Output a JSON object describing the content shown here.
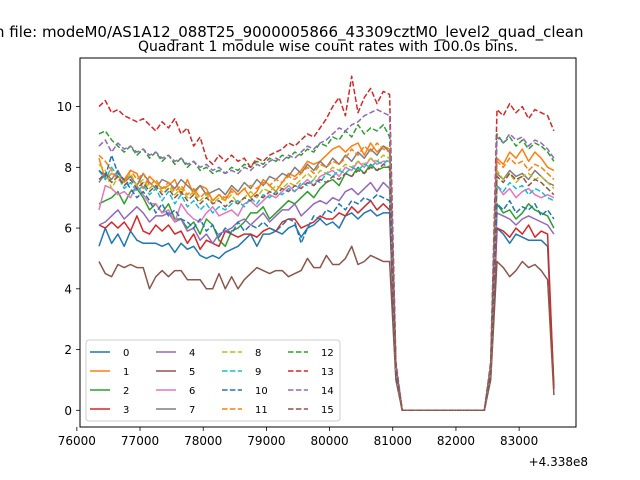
{
  "suptitle": "n file: modeM0/AS1A12_088T25_9000005866_43309cztM0_level2_quad_clean",
  "chart_data": {
    "type": "line",
    "title": "Quadrant 1 module wise count rates with 100.0s bins.",
    "xlabel": "",
    "ylabel": "",
    "x_offset_label": "+4.338e8",
    "xlim": [
      76050,
      83900
    ],
    "ylim": [
      -0.55,
      11.6
    ],
    "xticks": [
      76000,
      77000,
      78000,
      79000,
      80000,
      81000,
      82000,
      83000
    ],
    "yticks": [
      0,
      2,
      4,
      6,
      8,
      10
    ],
    "grid": false,
    "legend": {
      "placement": "lower-left",
      "columns": 4
    },
    "x": [
      76350,
      76450,
      76550,
      76650,
      76750,
      76850,
      76950,
      77050,
      77150,
      77250,
      77350,
      77450,
      77550,
      77650,
      77750,
      77850,
      77950,
      78050,
      78150,
      78250,
      78350,
      78450,
      78550,
      78650,
      78750,
      78850,
      78950,
      79050,
      79150,
      79250,
      79350,
      79450,
      79550,
      79650,
      79750,
      79850,
      79950,
      80050,
      80150,
      80250,
      80350,
      80450,
      80550,
      80650,
      80750,
      80850,
      80950,
      81050,
      81150,
      82450,
      82550,
      82650,
      82750,
      82850,
      82950,
      83050,
      83150,
      83250,
      83350,
      83450,
      83550
    ],
    "series": [
      {
        "name": "0",
        "color": "#1f77b4",
        "dash": "solid",
        "values": [
          5.4,
          6.0,
          5.5,
          5.8,
          5.4,
          5.9,
          5.6,
          5.5,
          5.5,
          5.5,
          5.4,
          5.5,
          5.2,
          5.5,
          5.3,
          5.4,
          5.1,
          5.0,
          5.1,
          5.0,
          5.2,
          5.3,
          5.4,
          5.6,
          5.8,
          5.4,
          5.8,
          5.8,
          5.9,
          5.8,
          6.0,
          6.1,
          5.7,
          6.0,
          6.1,
          6.3,
          6.1,
          6.2,
          6.0,
          6.4,
          6.5,
          6.3,
          6.5,
          6.6,
          6.4,
          6.5,
          6.5,
          1.2,
          0.0,
          0.0,
          1.3,
          6.0,
          5.8,
          5.5,
          5.8,
          5.7,
          5.6,
          5.6,
          5.6,
          5.4,
          0.8
        ]
      },
      {
        "name": "1",
        "color": "#ff7f0e",
        "dash": "solid",
        "values": [
          8.3,
          7.6,
          7.8,
          7.7,
          7.6,
          7.9,
          7.8,
          7.3,
          7.7,
          7.5,
          7.3,
          7.4,
          7.6,
          7.1,
          7.6,
          7.1,
          7.4,
          7.3,
          6.9,
          7.1,
          6.9,
          7.3,
          7.1,
          7.3,
          7.0,
          7.2,
          7.6,
          7.4,
          7.2,
          7.5,
          7.8,
          7.7,
          7.9,
          8.2,
          8.1,
          8.2,
          8.4,
          8.6,
          8.7,
          8.5,
          8.7,
          8.8,
          8.4,
          8.8,
          8.5,
          8.7,
          8.6,
          1.4,
          0.0,
          0.0,
          1.4,
          8.3,
          8.1,
          8.5,
          8.3,
          8.6,
          8.2,
          8.5,
          8.3,
          8.0,
          7.9
        ]
      },
      {
        "name": "2",
        "color": "#2ca02c",
        "dash": "solid",
        "values": [
          6.8,
          6.9,
          7.0,
          7.2,
          6.8,
          7.2,
          7.3,
          7.0,
          6.6,
          6.8,
          6.5,
          6.8,
          6.3,
          6.3,
          6.0,
          6.2,
          5.8,
          6.3,
          6.1,
          5.6,
          5.4,
          5.9,
          6.0,
          6.2,
          6.5,
          6.5,
          6.7,
          6.3,
          6.5,
          6.7,
          6.9,
          6.8,
          7.0,
          7.2,
          7.0,
          7.3,
          7.5,
          7.6,
          7.4,
          7.8,
          7.7,
          8.0,
          7.8,
          8.1,
          7.9,
          8.0,
          8.0,
          1.3,
          0.0,
          0.0,
          1.4,
          6.8,
          6.5,
          6.6,
          6.3,
          6.5,
          6.8,
          6.6,
          6.5,
          6.4,
          6.0
        ]
      },
      {
        "name": "3",
        "color": "#d62728",
        "dash": "solid",
        "values": [
          6.1,
          6.0,
          6.2,
          6.0,
          6.2,
          5.9,
          6.4,
          5.9,
          5.8,
          6.1,
          5.9,
          6.1,
          5.8,
          5.9,
          5.5,
          5.8,
          5.3,
          5.6,
          5.5,
          5.4,
          5.9,
          5.8,
          5.7,
          5.8,
          5.8,
          5.7,
          5.9,
          6.0,
          5.9,
          6.2,
          6.3,
          6.3,
          6.0,
          6.1,
          6.2,
          6.4,
          6.3,
          6.3,
          6.5,
          6.4,
          6.7,
          6.5,
          6.7,
          6.9,
          6.6,
          6.8,
          6.6,
          1.1,
          0.0,
          0.0,
          1.2,
          6.0,
          5.9,
          5.7,
          6.0,
          5.8,
          6.1,
          5.7,
          5.9,
          5.8,
          0.7
        ]
      },
      {
        "name": "4",
        "color": "#9467bd",
        "dash": "solid",
        "values": [
          6.1,
          6.2,
          6.4,
          6.6,
          6.3,
          6.5,
          6.7,
          6.5,
          6.2,
          6.4,
          6.4,
          6.5,
          6.2,
          6.3,
          5.9,
          6.0,
          5.6,
          5.8,
          5.5,
          5.8,
          5.9,
          6.0,
          6.2,
          6.3,
          6.1,
          6.3,
          6.5,
          6.2,
          6.4,
          6.6,
          6.6,
          6.8,
          6.4,
          6.6,
          6.8,
          6.9,
          6.8,
          7.0,
          6.9,
          7.2,
          7.3,
          7.1,
          7.3,
          7.5,
          7.2,
          7.5,
          7.3,
          1.2,
          0.0,
          0.0,
          1.3,
          6.5,
          6.4,
          6.3,
          6.1,
          6.3,
          6.4,
          6.3,
          6.2,
          6.1,
          5.8
        ]
      },
      {
        "name": "5",
        "color": "#8c564b",
        "dash": "solid",
        "values": [
          4.9,
          4.5,
          4.4,
          4.8,
          4.7,
          4.8,
          4.7,
          4.7,
          4.0,
          4.4,
          4.6,
          4.4,
          4.6,
          4.6,
          4.3,
          4.3,
          4.3,
          4.0,
          4.0,
          4.5,
          4.0,
          4.4,
          4.0,
          4.3,
          4.5,
          4.7,
          4.6,
          4.5,
          4.6,
          4.6,
          4.4,
          4.5,
          4.6,
          5.0,
          4.7,
          4.7,
          5.1,
          4.8,
          4.8,
          5.0,
          5.4,
          4.8,
          4.9,
          5.1,
          5.0,
          4.9,
          4.9,
          1.0,
          0.0,
          0.0,
          1.0,
          4.9,
          4.7,
          4.4,
          4.6,
          4.9,
          4.7,
          4.8,
          4.6,
          4.3,
          0.5
        ]
      },
      {
        "name": "6",
        "color": "#e377c2",
        "dash": "solid",
        "values": [
          6.6,
          7.4,
          7.3,
          7.1,
          7.2,
          7.0,
          7.4,
          7.1,
          6.8,
          6.8,
          6.5,
          6.6,
          6.2,
          6.8,
          6.5,
          6.3,
          6.2,
          6.5,
          6.7,
          6.4,
          6.5,
          6.6,
          6.4,
          6.8,
          6.9,
          6.7,
          6.9,
          7.1,
          7.0,
          7.2,
          7.4,
          7.2,
          7.4,
          7.6,
          7.4,
          7.7,
          7.8,
          7.9,
          7.7,
          8.0,
          7.9,
          8.2,
          8.0,
          8.3,
          8.1,
          8.2,
          8.2,
          1.3,
          0.0,
          0.0,
          1.4,
          7.4,
          7.1,
          7.3,
          7.0,
          7.2,
          7.3,
          7.1,
          7.0,
          7.1,
          7.0
        ]
      },
      {
        "name": "7",
        "color": "#7f7f7f",
        "dash": "solid",
        "values": [
          7.5,
          7.8,
          7.6,
          7.9,
          7.5,
          7.7,
          7.4,
          7.8,
          7.5,
          7.3,
          7.6,
          7.5,
          7.3,
          7.6,
          7.4,
          7.2,
          7.4,
          7.1,
          7.2,
          7.3,
          7.1,
          7.4,
          7.2,
          7.5,
          7.3,
          7.6,
          7.4,
          7.7,
          7.6,
          7.8,
          7.7,
          8.0,
          7.8,
          8.1,
          7.9,
          8.2,
          8.0,
          8.3,
          8.1,
          8.4,
          8.2,
          8.5,
          8.3,
          8.6,
          8.4,
          8.7,
          8.5,
          1.4,
          0.0,
          0.0,
          1.4,
          7.8,
          7.6,
          7.9,
          7.7,
          7.8,
          7.6,
          7.9,
          7.7,
          7.5,
          7.4
        ]
      },
      {
        "name": "8",
        "color": "#bcbd22",
        "dash": "dashed",
        "values": [
          8.1,
          7.9,
          7.3,
          7.7,
          7.5,
          7.8,
          7.4,
          7.6,
          7.3,
          7.5,
          7.2,
          7.4,
          7.1,
          7.3,
          7.0,
          7.2,
          6.9,
          7.1,
          6.8,
          7.0,
          6.9,
          7.1,
          6.8,
          7.0,
          7.2,
          7.0,
          7.3,
          7.2,
          7.4,
          7.3,
          7.5,
          7.4,
          7.6,
          7.8,
          7.6,
          7.9,
          7.8,
          8.0,
          7.9,
          8.1,
          8.0,
          8.2,
          8.1,
          8.3,
          8.2,
          8.4,
          8.3,
          1.4,
          0.0,
          0.0,
          1.3,
          7.9,
          7.6,
          7.8,
          7.5,
          7.7,
          7.8,
          7.6,
          7.7,
          7.5,
          7.3
        ]
      },
      {
        "name": "9",
        "color": "#17becf",
        "dash": "dashed",
        "values": [
          7.9,
          7.6,
          8.0,
          7.7,
          7.3,
          7.5,
          7.2,
          7.4,
          7.1,
          7.3,
          6.9,
          7.2,
          6.8,
          7.1,
          6.7,
          6.9,
          6.6,
          6.8,
          6.5,
          6.7,
          6.6,
          6.8,
          6.9,
          6.7,
          7.0,
          6.8,
          7.1,
          7.0,
          7.2,
          7.1,
          7.3,
          7.2,
          7.5,
          7.4,
          7.6,
          7.5,
          7.8,
          7.7,
          7.9,
          7.8,
          8.0,
          7.9,
          8.1,
          8.0,
          8.2,
          8.1,
          8.3,
          1.3,
          0.0,
          0.0,
          1.3,
          7.4,
          7.2,
          7.5,
          7.3,
          7.4,
          7.1,
          7.3,
          7.2,
          7.0,
          6.9
        ]
      },
      {
        "name": "10",
        "color": "#1f77b4",
        "dash": "dashed",
        "values": [
          7.9,
          7.7,
          8.4,
          7.8,
          7.6,
          7.3,
          7.0,
          7.2,
          6.9,
          6.5,
          6.8,
          6.4,
          6.6,
          6.3,
          6.2,
          6.0,
          6.3,
          5.9,
          6.1,
          5.7,
          6.0,
          5.8,
          6.2,
          5.9,
          6.1,
          6.0,
          6.2,
          6.0,
          5.9,
          6.1,
          6.3,
          6.2,
          5.5,
          6.0,
          6.4,
          6.3,
          6.6,
          6.5,
          6.8,
          6.6,
          6.9,
          6.8,
          7.0,
          6.9,
          7.1,
          7.0,
          6.9,
          1.2,
          0.0,
          0.0,
          1.2,
          6.8,
          6.6,
          6.9,
          6.5,
          6.7,
          6.6,
          6.8,
          6.4,
          6.6,
          6.3
        ]
      },
      {
        "name": "11",
        "color": "#ff7f0e",
        "dash": "dashed",
        "values": [
          8.4,
          8.2,
          7.9,
          7.6,
          7.5,
          7.9,
          7.6,
          7.8,
          7.4,
          7.6,
          7.3,
          7.5,
          7.2,
          7.4,
          7.1,
          7.3,
          7.0,
          7.2,
          6.9,
          7.1,
          7.0,
          7.2,
          7.1,
          7.3,
          7.4,
          7.3,
          7.5,
          7.4,
          7.6,
          7.5,
          7.7,
          7.6,
          7.8,
          8.0,
          7.8,
          8.1,
          8.0,
          8.2,
          8.1,
          8.3,
          8.6,
          8.4,
          8.7,
          8.5,
          8.8,
          8.6,
          8.5,
          1.4,
          0.0,
          0.0,
          1.4,
          8.2,
          8.0,
          8.3,
          8.1,
          8.2,
          7.9,
          8.1,
          8.0,
          7.8,
          7.6
        ]
      },
      {
        "name": "12",
        "color": "#2ca02c",
        "dash": "dashed",
        "values": [
          9.1,
          9.2,
          8.9,
          8.7,
          8.5,
          8.7,
          8.4,
          8.6,
          8.3,
          8.5,
          8.2,
          8.4,
          8.1,
          8.3,
          8.0,
          8.2,
          7.9,
          8.0,
          7.8,
          7.9,
          7.8,
          8.0,
          7.9,
          8.1,
          8.0,
          8.2,
          8.1,
          8.3,
          8.2,
          8.4,
          8.3,
          8.5,
          8.4,
          8.6,
          8.5,
          8.8,
          8.7,
          9.0,
          8.9,
          9.2,
          9.0,
          9.4,
          9.1,
          9.3,
          9.2,
          9.4,
          9.0,
          1.5,
          0.0,
          0.0,
          1.5,
          9.1,
          8.8,
          9.0,
          8.7,
          8.9,
          8.6,
          8.8,
          8.7,
          8.5,
          8.2
        ]
      },
      {
        "name": "13",
        "color": "#d62728",
        "dash": "dashed",
        "values": [
          10.0,
          10.2,
          9.8,
          9.9,
          9.7,
          9.6,
          9.5,
          9.6,
          9.4,
          9.2,
          9.5,
          9.3,
          9.6,
          9.1,
          9.3,
          8.7,
          9.0,
          8.3,
          8.1,
          8.4,
          8.2,
          8.4,
          8.2,
          8.3,
          8.0,
          8.3,
          8.2,
          8.4,
          8.5,
          8.6,
          8.8,
          8.7,
          8.9,
          9.1,
          9.0,
          9.3,
          9.6,
          10.0,
          10.3,
          9.7,
          11.0,
          9.8,
          10.3,
          10.6,
          10.1,
          10.5,
          10.4,
          1.6,
          0.0,
          0.0,
          1.6,
          9.9,
          9.7,
          10.1,
          9.8,
          10.0,
          9.6,
          9.9,
          9.8,
          9.7,
          9.2
        ]
      },
      {
        "name": "14",
        "color": "#9467bd",
        "dash": "dashed",
        "values": [
          8.7,
          8.9,
          8.5,
          8.8,
          8.6,
          8.7,
          8.5,
          8.6,
          8.4,
          8.5,
          8.3,
          8.4,
          8.2,
          8.3,
          8.1,
          8.2,
          8.0,
          8.1,
          7.9,
          8.0,
          7.8,
          7.9,
          7.8,
          8.0,
          7.9,
          8.1,
          8.0,
          8.2,
          8.3,
          8.2,
          8.4,
          8.3,
          8.5,
          8.7,
          8.6,
          8.8,
          8.9,
          9.1,
          9.3,
          9.2,
          9.4,
          9.5,
          9.7,
          9.8,
          9.9,
          9.8,
          9.7,
          1.5,
          0.0,
          0.0,
          1.5,
          9.0,
          8.8,
          9.1,
          8.9,
          9.0,
          8.7,
          8.9,
          8.8,
          8.6,
          8.3
        ]
      },
      {
        "name": "15",
        "color": "#8c564b",
        "dash": "dashed",
        "values": [
          7.6,
          7.8,
          7.5,
          7.7,
          7.4,
          7.6,
          7.3,
          7.5,
          7.2,
          7.4,
          7.1,
          7.3,
          7.0,
          7.2,
          6.9,
          7.1,
          6.8,
          7.0,
          6.8,
          6.9,
          6.7,
          6.9,
          6.8,
          7.0,
          6.9,
          7.1,
          7.0,
          7.2,
          7.1,
          7.3,
          7.2,
          7.4,
          7.3,
          7.5,
          7.4,
          7.6,
          7.5,
          7.7,
          7.6,
          7.8,
          7.7,
          7.9,
          7.8,
          8.0,
          7.9,
          8.1,
          8.0,
          1.3,
          0.0,
          0.0,
          1.3,
          7.7,
          7.5,
          7.8,
          7.6,
          7.7,
          7.4,
          7.6,
          7.5,
          7.3,
          7.1
        ]
      }
    ]
  }
}
